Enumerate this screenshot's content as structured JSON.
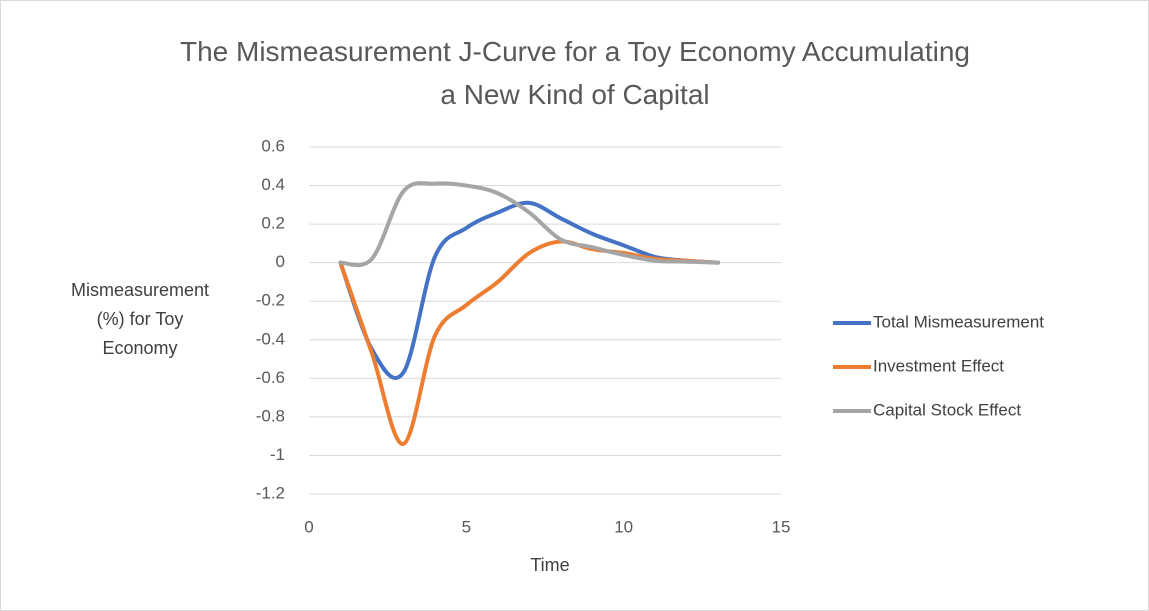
{
  "chart_data": {
    "type": "line",
    "title": "The Mismeasurement J-Curve for a Toy Economy Accumulating a New Kind of Capital",
    "x_label": "Time",
    "y_label": "Mismeasurement (%) for Toy Economy",
    "x": [
      1,
      2,
      3,
      4,
      5,
      6,
      7,
      8,
      9,
      10,
      11,
      12,
      13
    ],
    "series": [
      {
        "name": "Total Mismeasurement",
        "color": "#4472c4",
        "values": [
          0,
          -0.45,
          -0.57,
          0.03,
          0.18,
          0.26,
          0.31,
          0.23,
          0.15,
          0.09,
          0.03,
          0.01,
          0
        ]
      },
      {
        "name": "Investment Effect",
        "color": "#ed7d31",
        "values": [
          0,
          -0.47,
          -0.94,
          -0.38,
          -0.22,
          -0.1,
          0.05,
          0.11,
          0.07,
          0.05,
          0.02,
          0.01,
          0
        ]
      },
      {
        "name": "Capital Stock Effect",
        "color": "#a5a5a5",
        "values": [
          0,
          0.02,
          0.37,
          0.41,
          0.4,
          0.36,
          0.26,
          0.12,
          0.08,
          0.04,
          0.01,
          0.005,
          0
        ]
      }
    ],
    "xlim": [
      0,
      15
    ],
    "xticks": [
      0,
      5,
      10,
      15
    ],
    "ylim": [
      -1.2,
      0.6
    ],
    "yticks": [
      -1.2,
      -1,
      -0.8,
      -0.6,
      -0.4,
      -0.2,
      0,
      0.2,
      0.4,
      0.6
    ],
    "grid": true,
    "smooth": true,
    "legend": "right"
  }
}
